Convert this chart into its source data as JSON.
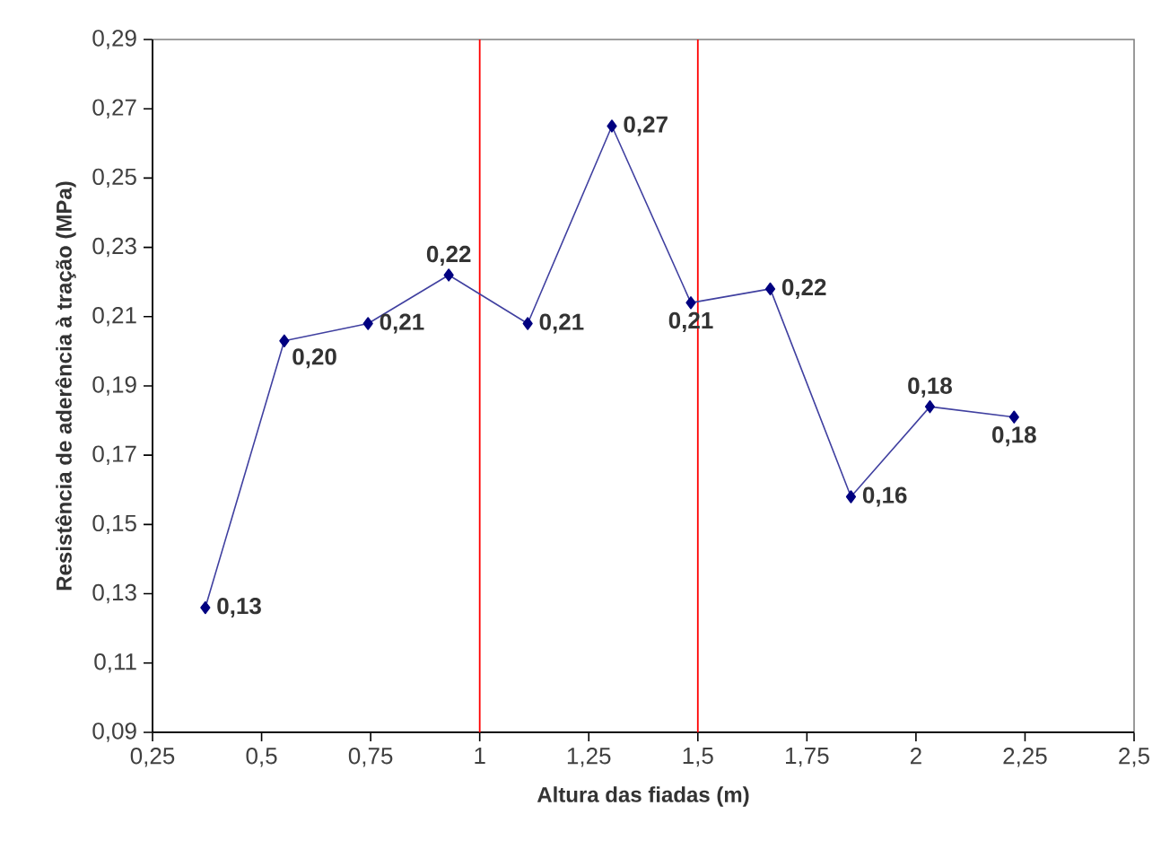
{
  "chart_data": {
    "type": "line",
    "xlabel": "Altura das fiadas (m)",
    "ylabel": "Resistência de aderência à tração (MPa)",
    "x": [
      0.371,
      0.552,
      0.744,
      0.929,
      1.11,
      1.303,
      1.484,
      1.666,
      1.851,
      2.032,
      2.225
    ],
    "series": [
      {
        "color": "#000080",
        "values": [
          0.126,
          0.203,
          0.208,
          0.222,
          0.208,
          0.265,
          0.214,
          0.218,
          0.158,
          0.184,
          0.181
        ],
        "value_labels": [
          "0,13",
          "0,20",
          "0,21",
          "0,22",
          "0,21",
          "0,27",
          "0,21",
          "0,22",
          "0,16",
          "0,18",
          "0,18"
        ]
      }
    ],
    "marker": "diamond",
    "xlim": [
      0.25,
      2.5
    ],
    "xticks": [
      {
        "value": 0.25,
        "label": "0,25"
      },
      {
        "value": 0.5,
        "label": "0,5"
      },
      {
        "value": 0.75,
        "label": "0,75"
      },
      {
        "value": 1,
        "label": "1"
      },
      {
        "value": 1.25,
        "label": "1,25"
      },
      {
        "value": 1.5,
        "label": "1,5"
      },
      {
        "value": 1.75,
        "label": "1,75"
      },
      {
        "value": 2,
        "label": "2"
      },
      {
        "value": 2.25,
        "label": "2,25"
      },
      {
        "value": 2.5,
        "label": "2,5"
      }
    ],
    "ylim": [
      0.09,
      0.29
    ],
    "yticks": [
      {
        "value": 0.09,
        "label": "0,09"
      },
      {
        "value": 0.11,
        "label": "0,11"
      },
      {
        "value": 0.13,
        "label": "0,13"
      },
      {
        "value": 0.15,
        "label": "0,15"
      },
      {
        "value": 0.17,
        "label": "0,17"
      },
      {
        "value": 0.19,
        "label": "0,19"
      },
      {
        "value": 0.21,
        "label": "0,21"
      },
      {
        "value": 0.23,
        "label": "0,23"
      },
      {
        "value": 0.25,
        "label": "0,25"
      },
      {
        "value": 0.27,
        "label": "0,27"
      },
      {
        "value": 0.29,
        "label": "0,29"
      }
    ],
    "ref_lines": [
      {
        "axis": "x",
        "value": 1,
        "color": "#ff0000"
      },
      {
        "axis": "x",
        "value": 1.5,
        "color": "#ff0000"
      }
    ]
  }
}
